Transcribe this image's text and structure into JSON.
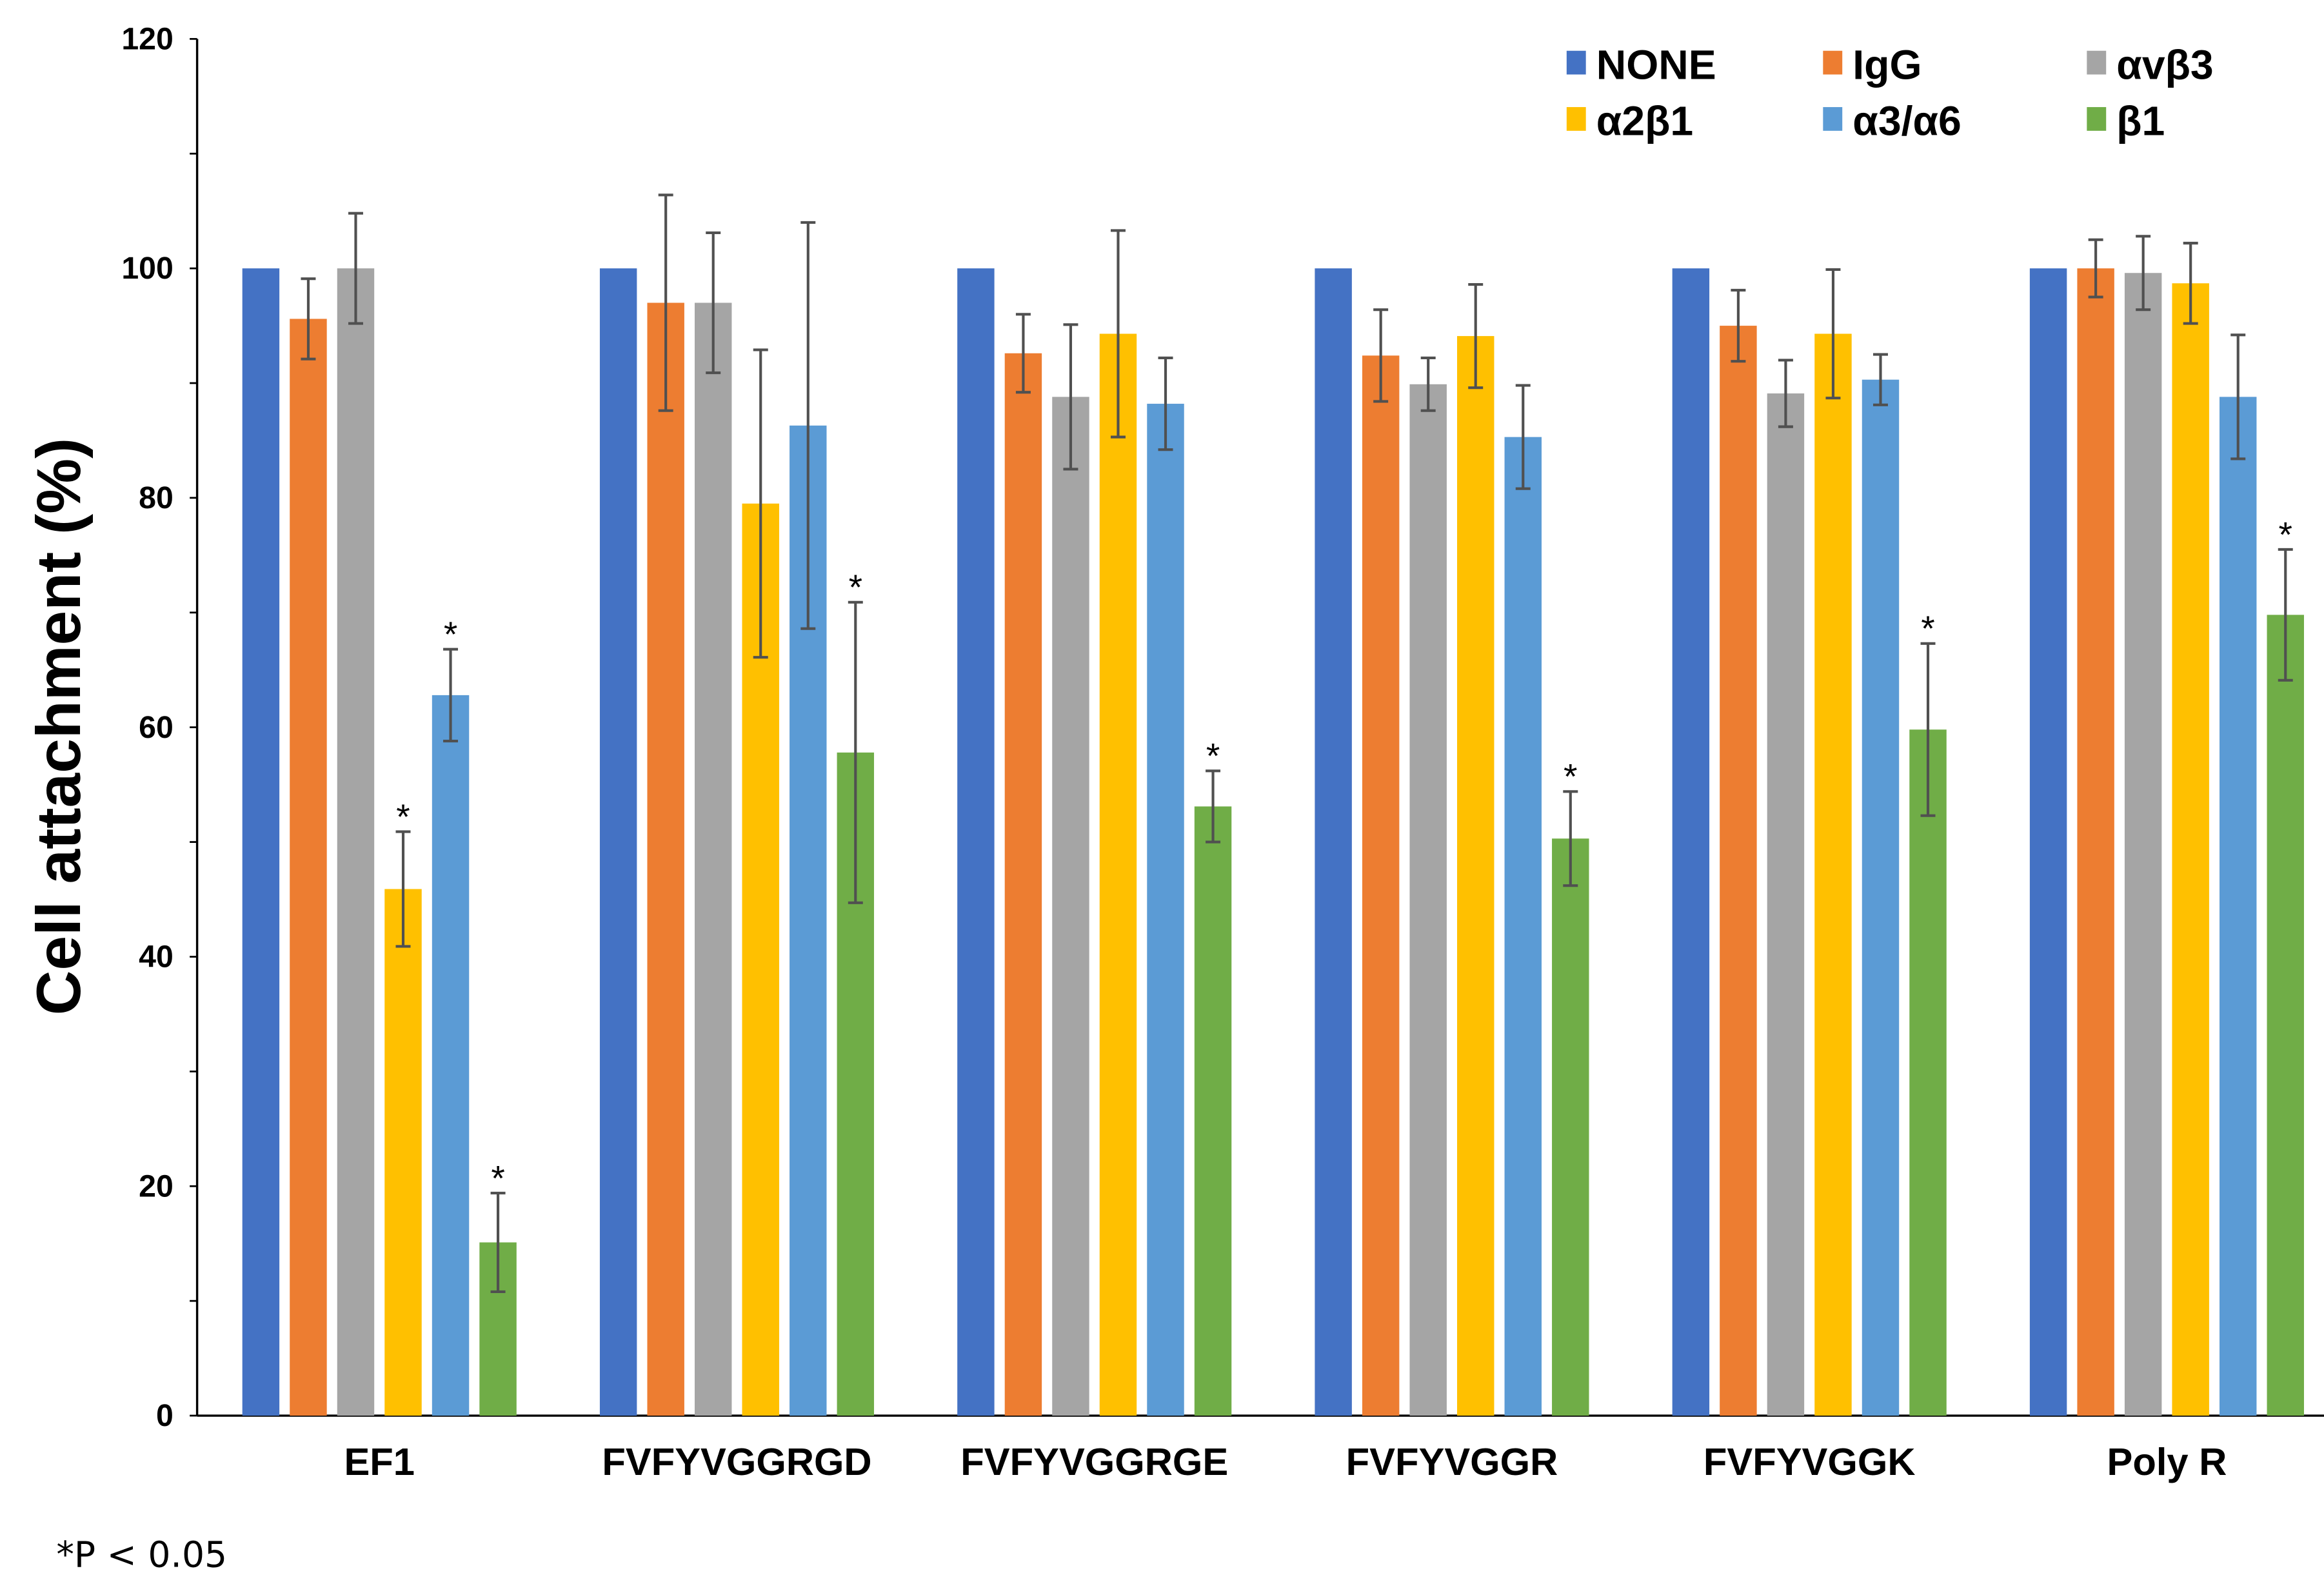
{
  "chart_data": {
    "type": "bar",
    "title": "",
    "xlabel": "",
    "ylabel": "Cell attachment (%)",
    "ylim": [
      0,
      120
    ],
    "yticks": [
      0,
      20,
      40,
      60,
      80,
      100,
      120
    ],
    "grid": false,
    "legend_position": "top-right",
    "categories": [
      "EF1",
      "FVFYVGGRGD",
      "FVFYVGGRGE",
      "FVFYVGGR",
      "FVFYVGGK",
      "Poly R"
    ],
    "series": [
      {
        "name": "NONE",
        "color": "#4472C4",
        "values": [
          100,
          100,
          100,
          100,
          100,
          100
        ],
        "errors": [
          0,
          0,
          0,
          0,
          0,
          0
        ],
        "significant": [
          false,
          false,
          false,
          false,
          false,
          false
        ]
      },
      {
        "name": "IgG",
        "color": "#ED7D31",
        "values": [
          95.6,
          97.0,
          92.6,
          92.4,
          95.0,
          100.0
        ],
        "errors": [
          3.5,
          9.4,
          3.4,
          4.0,
          3.1,
          2.5
        ],
        "significant": [
          false,
          false,
          false,
          false,
          false,
          false
        ]
      },
      {
        "name": "αvβ3",
        "color": "#A5A5A5",
        "values": [
          100.0,
          97.0,
          88.8,
          89.9,
          89.1,
          99.6
        ],
        "errors": [
          4.8,
          6.1,
          6.3,
          2.3,
          2.9,
          3.2
        ],
        "significant": [
          false,
          false,
          false,
          false,
          false,
          false
        ]
      },
      {
        "name": "α2β1",
        "color": "#FFC000",
        "values": [
          45.9,
          79.5,
          94.3,
          94.1,
          94.3,
          98.7
        ],
        "errors": [
          5.0,
          13.4,
          9.0,
          4.5,
          5.6,
          3.5
        ],
        "significant": [
          true,
          false,
          false,
          false,
          false,
          false
        ]
      },
      {
        "name": "α3/α6",
        "color": "#5B9BD5",
        "values": [
          62.8,
          86.3,
          88.2,
          85.3,
          90.3,
          88.8
        ],
        "errors": [
          4.0,
          17.7,
          4.0,
          4.5,
          2.2,
          5.4
        ],
        "significant": [
          true,
          false,
          false,
          false,
          false,
          false
        ]
      },
      {
        "name": "β1",
        "color": "#70AD47",
        "values": [
          15.1,
          57.8,
          53.1,
          50.3,
          59.8,
          69.8
        ],
        "errors": [
          4.3,
          13.1,
          3.1,
          4.1,
          7.5,
          5.7
        ],
        "significant": [
          true,
          true,
          true,
          true,
          true,
          true
        ]
      }
    ],
    "significance_marker": "*",
    "footnote": "*P < 0.05"
  }
}
